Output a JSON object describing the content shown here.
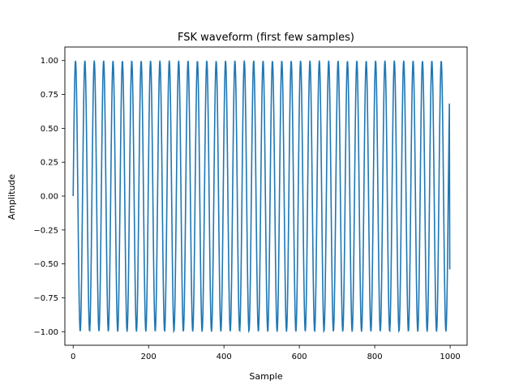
{
  "chart_data": {
    "type": "line",
    "title": "FSK waveform (first few samples)",
    "xlabel": "Sample",
    "ylabel": "Amplitude",
    "xlim": [
      -22,
      1045
    ],
    "ylim": [
      -1.1,
      1.1
    ],
    "xticks": [
      0,
      200,
      400,
      600,
      800,
      1000
    ],
    "xtick_labels": [
      "0",
      "200",
      "400",
      "600",
      "800",
      "1000"
    ],
    "yticks": [
      -1.0,
      -0.75,
      -0.5,
      -0.25,
      0.0,
      0.25,
      0.5,
      0.75,
      1.0
    ],
    "ytick_labels": [
      "−1.00",
      "−0.75",
      "−0.50",
      "−0.25",
      "0.00",
      "0.25",
      "0.50",
      "0.75",
      "1.00"
    ],
    "grid": false,
    "series": [
      {
        "color": "#1f77b4",
        "x_range": [
          0,
          999
        ],
        "description_points": "sine waveform, amplitude 1.0, starts at 0",
        "frequency_cycles_per_sample": 0.0402,
        "end_value": -0.54
      }
    ]
  }
}
